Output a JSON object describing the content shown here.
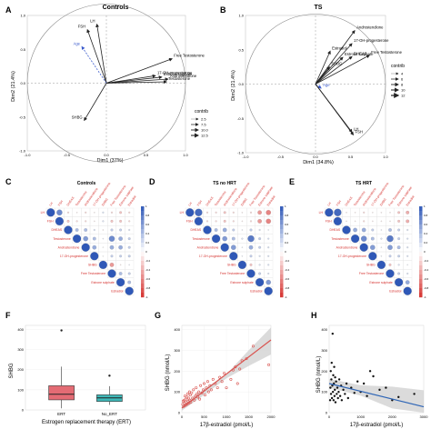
{
  "panel_labels": [
    "A",
    "B",
    "C",
    "D",
    "E",
    "F",
    "G",
    "H"
  ],
  "colors": {
    "arrow": "#222222",
    "arrow_light": "#999999",
    "supp": "#3b5bcc",
    "corr_pos": "#2f58b7",
    "corr_neg": "#d5322f",
    "boxplot_ert": "#e46b74",
    "boxplot_no_ert": "#3fb8b8",
    "scatter_g": "#d9534f",
    "scatter_h": "#111111",
    "fit_g": "#d9534f",
    "fit_h": "#2e65b6",
    "ci_band": "#cfcfcf"
  },
  "chart_data": [
    {
      "panel": "A",
      "type": "scatter",
      "title": "Controls",
      "xlabel": "Dim1 (37%)",
      "ylabel": "Dim2 (21.4%)",
      "xlim": [
        -1,
        1
      ],
      "ylim": [
        -1,
        1
      ],
      "x_ticks": [
        "-1.0",
        "-0.5",
        "0.0",
        "0.5",
        "1.0"
      ],
      "y_ticks": [
        "-1.0",
        "-0.5",
        "0.0",
        "0.5",
        "1.0"
      ],
      "legend_title": "contrib",
      "legend_values": [
        "2.5",
        "7.5",
        "10.0",
        "12.5"
      ],
      "vectors": [
        {
          "name": "FSH",
          "x": -0.24,
          "y": 0.79
        },
        {
          "name": "LH",
          "x": -0.12,
          "y": 0.87
        },
        {
          "name": "Age",
          "x": -0.31,
          "y": 0.54,
          "supplementary": true
        },
        {
          "name": "Free Testosterone",
          "x": 0.83,
          "y": 0.36
        },
        {
          "name": "17-OH-progesterone",
          "x": 0.62,
          "y": 0.11
        },
        {
          "name": "Estrone sulphate",
          "x": 0.7,
          "y": 0.09
        },
        {
          "name": "Androstendione",
          "x": 0.78,
          "y": 0.06
        },
        {
          "name": "Testosterone",
          "x": 0.76,
          "y": 0.02
        },
        {
          "name": "SHBG",
          "x": -0.28,
          "y": -0.55
        }
      ]
    },
    {
      "panel": "B",
      "type": "scatter",
      "title": "TS",
      "xlabel": "Dim1 (34.8%)",
      "ylabel": "Dim2 (21.4%)",
      "xlim": [
        -1,
        1
      ],
      "ylim": [
        -1,
        1
      ],
      "x_ticks": [
        "-1.0",
        "-0.5",
        "0.0",
        "0.5",
        "1.0"
      ],
      "y_ticks": [
        "-1.0",
        "-0.5",
        "0.0",
        "0.5",
        "1.0"
      ],
      "legend_title": "contrib",
      "legend_values": [
        "4",
        "6",
        "8",
        "10",
        "12"
      ],
      "vectors": [
        {
          "name": "Androstendione",
          "x": 0.56,
          "y": 0.78
        },
        {
          "name": "17-OH-progesterone",
          "x": 0.52,
          "y": 0.59
        },
        {
          "name": "Free Testosterone",
          "x": 0.77,
          "y": 0.42
        },
        {
          "name": "DHEAS",
          "x": 0.52,
          "y": 0.4
        },
        {
          "name": "Estradiol",
          "x": 0.21,
          "y": 0.48
        },
        {
          "name": "Estrone sulphate",
          "x": 0.39,
          "y": 0.39
        },
        {
          "name": "SHBG",
          "x": 0.2,
          "y": 0.25
        },
        {
          "name": "Age",
          "x": 0.08,
          "y": -0.06,
          "supplementary": true
        },
        {
          "name": "LH",
          "x": 0.52,
          "y": -0.7
        },
        {
          "name": "FSH",
          "x": 0.54,
          "y": -0.74
        }
      ]
    },
    {
      "panel": "C",
      "type": "heatmap",
      "title": "Controls",
      "variables": [
        "LH",
        "FSH",
        "DHEAS",
        "Testosterone",
        "Androstendione",
        "17-OH-progesterone",
        "SHBG",
        "Free Testosterone",
        "Estrone sulphate",
        "Estradiol"
      ],
      "colorbar_ticks": [
        "1",
        "0.8",
        "0.6",
        "0.4",
        "0.2",
        "0",
        "-0.2",
        "-0.4",
        "-0.6",
        "-0.8",
        "-1"
      ],
      "matrix": [
        [
          1.0,
          0.7,
          -0.2,
          -0.1,
          -0.2,
          -0.1,
          0.2,
          -0.2,
          -0.3,
          -0.2
        ],
        [
          0.7,
          1.0,
          -0.3,
          -0.2,
          -0.2,
          -0.1,
          0.2,
          -0.3,
          -0.3,
          -0.2
        ],
        [
          -0.2,
          -0.3,
          1.0,
          0.4,
          0.4,
          0.2,
          -0.1,
          0.3,
          0.3,
          0.2
        ],
        [
          -0.1,
          -0.2,
          0.4,
          1.0,
          0.6,
          0.4,
          0.1,
          0.7,
          0.5,
          0.3
        ],
        [
          -0.2,
          -0.2,
          0.4,
          0.6,
          1.0,
          0.5,
          0.0,
          0.5,
          0.5,
          0.3
        ],
        [
          -0.1,
          -0.1,
          0.2,
          0.4,
          0.5,
          1.0,
          0.0,
          0.3,
          0.3,
          0.3
        ],
        [
          0.2,
          0.2,
          -0.1,
          0.1,
          0.0,
          0.0,
          1.0,
          -0.5,
          -0.1,
          0.1
        ],
        [
          -0.2,
          -0.3,
          0.3,
          0.7,
          0.5,
          0.3,
          -0.5,
          1.0,
          0.4,
          0.3
        ],
        [
          -0.3,
          -0.3,
          0.3,
          0.5,
          0.5,
          0.3,
          -0.1,
          0.4,
          1.0,
          0.4
        ],
        [
          -0.2,
          -0.2,
          0.2,
          0.3,
          0.3,
          0.3,
          0.1,
          0.3,
          0.4,
          1.0
        ]
      ]
    },
    {
      "panel": "D",
      "type": "heatmap",
      "title": "TS no HRT",
      "variables": [
        "LH",
        "FSH",
        "DHEAS",
        "Testosterone",
        "Androstendione",
        "17-OH-progesterone",
        "SHBG",
        "Free Testosterone",
        "Estrone sulphate",
        "Estradiol"
      ],
      "colorbar_ticks": [
        "1",
        "0.8",
        "0.6",
        "0.4",
        "0.2",
        "0",
        "-0.2",
        "-0.4",
        "-0.6",
        "-0.8",
        "-1"
      ],
      "matrix": [
        [
          1.0,
          0.9,
          -0.2,
          -0.2,
          -0.3,
          -0.2,
          -0.1,
          -0.2,
          -0.5,
          -0.6
        ],
        [
          0.9,
          1.0,
          -0.2,
          -0.2,
          -0.3,
          -0.2,
          -0.1,
          -0.2,
          -0.5,
          -0.6
        ],
        [
          -0.2,
          -0.2,
          1.0,
          0.4,
          0.5,
          0.3,
          0.1,
          0.3,
          0.2,
          0.1
        ],
        [
          -0.2,
          -0.2,
          0.4,
          1.0,
          0.6,
          0.4,
          0.2,
          0.8,
          0.3,
          0.2
        ],
        [
          -0.3,
          -0.3,
          0.5,
          0.6,
          1.0,
          0.6,
          0.1,
          0.5,
          0.3,
          0.2
        ],
        [
          -0.2,
          -0.2,
          0.3,
          0.4,
          0.6,
          1.0,
          0.1,
          0.3,
          0.2,
          0.2
        ],
        [
          -0.1,
          -0.1,
          0.1,
          0.2,
          0.1,
          0.1,
          1.0,
          -0.3,
          0.2,
          0.2
        ],
        [
          -0.2,
          -0.2,
          0.3,
          0.8,
          0.5,
          0.3,
          -0.3,
          1.0,
          0.3,
          0.2
        ],
        [
          -0.5,
          -0.5,
          0.2,
          0.3,
          0.3,
          0.2,
          0.2,
          0.3,
          1.0,
          0.6
        ],
        [
          -0.6,
          -0.6,
          0.1,
          0.2,
          0.2,
          0.2,
          0.2,
          0.2,
          0.6,
          1.0
        ]
      ]
    },
    {
      "panel": "E",
      "type": "heatmap",
      "title": "TS HRT",
      "variables": [
        "LH",
        "FSH",
        "DHEAS",
        "Testosterone",
        "Androstendione",
        "17-OH-progesterone",
        "SHBG",
        "Free Testosterone",
        "Estrone sulphate",
        "Estradiol"
      ],
      "colorbar_ticks": [
        "1",
        "0.8",
        "0.6",
        "0.4",
        "0.2",
        "0",
        "-0.2",
        "-0.4",
        "-0.6",
        "-0.8",
        "-1"
      ],
      "matrix": [
        [
          1.0,
          0.9,
          -0.1,
          -0.1,
          -0.2,
          -0.1,
          -0.1,
          -0.1,
          -0.3,
          -0.4
        ],
        [
          0.9,
          1.0,
          -0.1,
          -0.1,
          -0.2,
          -0.1,
          -0.1,
          -0.1,
          -0.3,
          -0.4
        ],
        [
          -0.1,
          -0.1,
          1.0,
          0.5,
          0.5,
          0.3,
          0.1,
          0.4,
          0.3,
          0.2
        ],
        [
          -0.1,
          -0.1,
          0.5,
          1.0,
          0.7,
          0.4,
          0.2,
          0.8,
          0.3,
          0.2
        ],
        [
          -0.2,
          -0.2,
          0.5,
          0.7,
          1.0,
          0.6,
          0.1,
          0.6,
          0.4,
          0.2
        ],
        [
          -0.1,
          -0.1,
          0.3,
          0.4,
          0.6,
          1.0,
          0.1,
          0.3,
          0.3,
          0.2
        ],
        [
          -0.1,
          -0.1,
          0.1,
          0.2,
          0.1,
          0.1,
          1.0,
          -0.3,
          0.2,
          0.1
        ],
        [
          -0.1,
          -0.1,
          0.4,
          0.8,
          0.6,
          0.3,
          -0.3,
          1.0,
          0.3,
          0.2
        ],
        [
          -0.3,
          -0.3,
          0.3,
          0.3,
          0.4,
          0.3,
          0.2,
          0.3,
          1.0,
          0.5
        ],
        [
          -0.4,
          -0.4,
          0.2,
          0.2,
          0.2,
          0.2,
          0.1,
          0.2,
          0.5,
          1.0
        ]
      ]
    },
    {
      "panel": "F",
      "type": "bar",
      "subtype": "boxplot",
      "categories": [
        "ERT",
        "No_ERT"
      ],
      "xlabel": "Estrogen replacement therapy (ERT)",
      "ylabel": "SHBG",
      "ylim": [
        0,
        420
      ],
      "y_ticks": [
        0,
        100,
        200,
        300,
        400
      ],
      "annotation": "P-value = 0.08",
      "boxes": [
        {
          "name": "ERT",
          "min": 8,
          "q1": 50,
          "median": 78,
          "q3": 120,
          "max": 215,
          "outliers": [
            395
          ]
        },
        {
          "name": "No_ERT",
          "min": 25,
          "q1": 42,
          "median": 60,
          "q3": 75,
          "max": 118,
          "outliers": [
            170
          ]
        }
      ]
    },
    {
      "panel": "G",
      "type": "scatter",
      "xlabel": "17β-estradiol (pmol/L)",
      "ylabel": "SHBG (nmol/L)",
      "xlim": [
        0,
        2000
      ],
      "ylim": [
        0,
        420
      ],
      "x_ticks": [
        0,
        500,
        1000,
        1500,
        2000
      ],
      "y_ticks": [
        0,
        100,
        200,
        300,
        400
      ],
      "annotation": [
        "r = 0.69",
        "p-value = 3.9e-11"
      ],
      "fit": {
        "x": [
          0,
          2000
        ],
        "y": [
          22,
          350
        ]
      },
      "ci_band": {
        "x": [
          0,
          500,
          1000,
          1500,
          2000
        ],
        "lower": [
          10,
          85,
          165,
          225,
          280
        ],
        "upper": [
          34,
          113,
          185,
          300,
          410
        ]
      },
      "points": [
        [
          20,
          40
        ],
        [
          30,
          55
        ],
        [
          40,
          30
        ],
        [
          50,
          60
        ],
        [
          60,
          45
        ],
        [
          70,
          80
        ],
        [
          80,
          35
        ],
        [
          90,
          65
        ],
        [
          100,
          50
        ],
        [
          110,
          75
        ],
        [
          120,
          40
        ],
        [
          130,
          90
        ],
        [
          140,
          55
        ],
        [
          150,
          70
        ],
        [
          160,
          45
        ],
        [
          170,
          100
        ],
        [
          180,
          60
        ],
        [
          190,
          85
        ],
        [
          200,
          50
        ],
        [
          220,
          95
        ],
        [
          240,
          70
        ],
        [
          260,
          110
        ],
        [
          280,
          60
        ],
        [
          300,
          80
        ],
        [
          320,
          120
        ],
        [
          340,
          90
        ],
        [
          360,
          75
        ],
        [
          380,
          100
        ],
        [
          400,
          65
        ],
        [
          420,
          130
        ],
        [
          450,
          95
        ],
        [
          480,
          110
        ],
        [
          500,
          140
        ],
        [
          520,
          85
        ],
        [
          550,
          120
        ],
        [
          580,
          150
        ],
        [
          600,
          100
        ],
        [
          630,
          130
        ],
        [
          660,
          110
        ],
        [
          700,
          160
        ],
        [
          750,
          140
        ],
        [
          800,
          120
        ],
        [
          850,
          170
        ],
        [
          900,
          150
        ],
        [
          950,
          190
        ],
        [
          1000,
          120
        ],
        [
          1100,
          160
        ],
        [
          1150,
          205
        ],
        [
          1200,
          220
        ],
        [
          1250,
          140
        ],
        [
          1300,
          210
        ],
        [
          1350,
          250
        ],
        [
          1450,
          260
        ],
        [
          1600,
          320
        ],
        [
          1950,
          230
        ]
      ]
    },
    {
      "panel": "H",
      "type": "scatter",
      "xlabel": "17β-estradiol (pmol/L)",
      "ylabel": "SHBG (nmol/L)",
      "xlim": [
        0,
        3000
      ],
      "ylim": [
        0,
        420
      ],
      "x_ticks": [
        0,
        1000,
        2000,
        3000
      ],
      "y_ticks": [
        0,
        100,
        200,
        300,
        400
      ],
      "annotation": [
        "r = -0.22",
        "p-value = 0.073"
      ],
      "fit": {
        "x": [
          0,
          3000
        ],
        "y": [
          140,
          28
        ]
      },
      "ci_band": {
        "x": [
          0,
          1000,
          2000,
          3000
        ],
        "lower": [
          120,
          82,
          20,
          -45
        ],
        "upper": [
          162,
          132,
          125,
          108
        ]
      },
      "points": [
        [
          30,
          60
        ],
        [
          40,
          120
        ],
        [
          50,
          200
        ],
        [
          60,
          90
        ],
        [
          70,
          160
        ],
        [
          80,
          240
        ],
        [
          90,
          70
        ],
        [
          100,
          130
        ],
        [
          110,
          380
        ],
        [
          120,
          100
        ],
        [
          130,
          180
        ],
        [
          140,
          60
        ],
        [
          150,
          140
        ],
        [
          160,
          220
        ],
        [
          170,
          80
        ],
        [
          180,
          110
        ],
        [
          190,
          170
        ],
        [
          200,
          50
        ],
        [
          220,
          150
        ],
        [
          240,
          90
        ],
        [
          260,
          120
        ],
        [
          280,
          70
        ],
        [
          300,
          100
        ],
        [
          320,
          160
        ],
        [
          350,
          80
        ],
        [
          380,
          130
        ],
        [
          400,
          60
        ],
        [
          450,
          110
        ],
        [
          500,
          90
        ],
        [
          550,
          140
        ],
        [
          600,
          70
        ],
        [
          700,
          120
        ],
        [
          800,
          95
        ],
        [
          900,
          150
        ],
        [
          1000,
          100
        ],
        [
          1100,
          140
        ],
        [
          1200,
          80
        ],
        [
          1300,
          200
        ],
        [
          1400,
          175
        ],
        [
          1600,
          110
        ],
        [
          1800,
          120
        ],
        [
          2000,
          60
        ],
        [
          2200,
          75
        ],
        [
          2700,
          90
        ]
      ]
    }
  ]
}
